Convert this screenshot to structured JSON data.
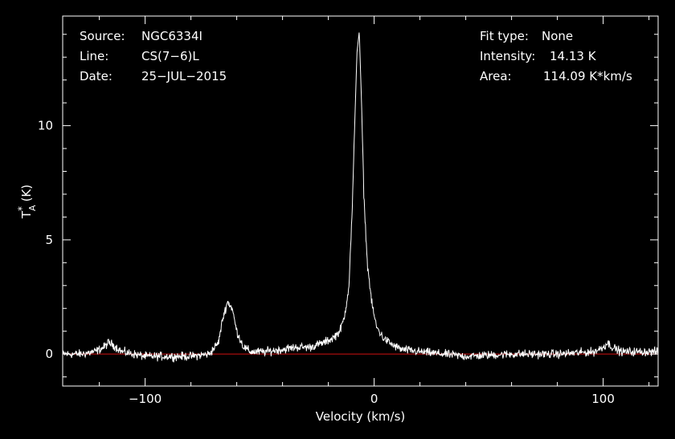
{
  "info_left": [
    {
      "key": "Source:",
      "value": "NGC6334I"
    },
    {
      "key": "Line:",
      "value": "CS(7−6)L"
    },
    {
      "key": "Date:",
      "value": "25−JUL−2015"
    }
  ],
  "info_right": [
    {
      "key": "Fit type:",
      "value": "None"
    },
    {
      "key": "Intensity:",
      "value": "14.13 K"
    },
    {
      "key": "Area:",
      "value": "114.09 K*km/s"
    }
  ],
  "colors": {
    "background": "#000000",
    "foreground": "#ffffff",
    "baseline": "#d01010"
  },
  "chart_data": {
    "type": "line",
    "xlabel": "Velocity (km/s)",
    "ylabel": "T",
    "ylabel_sup": "*",
    "ylabel_sub": "A",
    "ylabel_unit": "(K)",
    "xlim": [
      -136,
      124
    ],
    "ylim": [
      -1.4,
      14.8
    ],
    "x_ticks": [
      -100,
      0,
      100
    ],
    "x_tick_labels": [
      "−100",
      "0",
      "100"
    ],
    "y_ticks": [
      0,
      5,
      10
    ],
    "y_tick_labels": [
      "0",
      "5",
      "10"
    ],
    "grid": false,
    "baseline_y": 0,
    "series": [
      {
        "x": [
          -136,
          -128,
          -122,
          -118,
          -116,
          -114,
          -110,
          -100,
          -90,
          -80,
          -72,
          -68,
          -66,
          -64,
          -62,
          -60,
          -57,
          -54,
          -48,
          -40,
          -34,
          -28,
          -22,
          -18,
          -15,
          -13,
          -11,
          -9.5,
          -8.5,
          -7.5,
          -6.5,
          -5.5,
          -4.5,
          -3,
          -1,
          1,
          4,
          8,
          12,
          20,
          40,
          60,
          80,
          96,
          100,
          102,
          104,
          108,
          124
        ],
        "y": [
          0.0,
          0.0,
          0.1,
          0.3,
          0.5,
          0.4,
          0.1,
          -0.1,
          -0.1,
          -0.1,
          0.0,
          0.5,
          1.6,
          2.3,
          2.0,
          1.0,
          0.3,
          0.1,
          0.1,
          0.2,
          0.3,
          0.3,
          0.5,
          0.7,
          1.0,
          1.6,
          3.0,
          6.5,
          10.0,
          13.2,
          14.13,
          11.0,
          7.0,
          4.0,
          2.2,
          1.2,
          0.7,
          0.4,
          0.2,
          0.1,
          -0.1,
          0.0,
          0.0,
          0.1,
          0.3,
          0.5,
          0.3,
          0.1,
          0.1
        ]
      }
    ]
  }
}
